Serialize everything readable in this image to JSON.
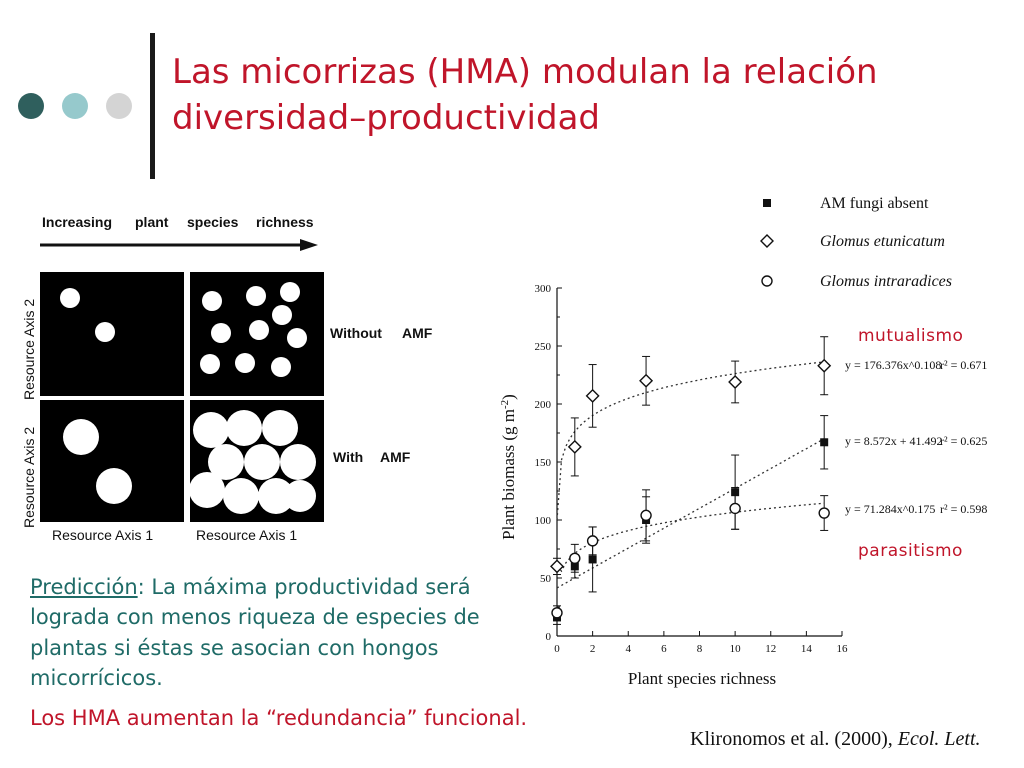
{
  "slide": {
    "title_line1": "Las micorrizas (HMA) modulan la relación",
    "title_line2": "diversidad–productividad",
    "prediction_label": "Predicción",
    "prediction_text": ": La máxima productividad será lograda con menos riqueza de especies de plantas si éstas se asocian con hongos micorrícicos.",
    "redundancy": "Los HMA aumentan la “redundancia” funcional.",
    "citation_authors": "Klironomos et al. (2000),",
    "citation_journal": "Ecol. Lett.",
    "tag_mutualism": "mutualismo",
    "tag_parasitism": "parasitismo",
    "colors": {
      "accent_red": "#c0152a",
      "teal_text": "#1f6b67",
      "dot1": "#2f5f5d",
      "dot2": "#96c9cc",
      "dot3": "#d4d4d4"
    }
  },
  "diagram": {
    "arrow_words": [
      "Increasing",
      "plant",
      "species",
      "richness"
    ],
    "row_label_without": [
      "Without",
      "AMF"
    ],
    "row_label_with": [
      "With",
      "AMF"
    ],
    "y_axis_label": "Resource  Axis  2",
    "x_axis_label": "Resource  Axis  1"
  },
  "chart_data": {
    "type": "scatter",
    "xlabel": "Plant species richness",
    "ylabel": "Plant biomass (g m-2)",
    "xlim": [
      0,
      16
    ],
    "ylim": [
      0,
      300
    ],
    "x_ticks": [
      0,
      2,
      4,
      6,
      8,
      10,
      12,
      14,
      16
    ],
    "y_ticks": [
      0,
      50,
      100,
      150,
      200,
      250,
      300
    ],
    "legend_position": "top-right",
    "series": [
      {
        "name": "AM fungi absent",
        "marker": "filled-square",
        "x": [
          0,
          1,
          2,
          5,
          10,
          15
        ],
        "y": [
          16,
          60,
          66,
          100,
          124,
          167
        ],
        "err": [
          6,
          10,
          28,
          20,
          32,
          23
        ],
        "fit": {
          "kind": "linear",
          "a": 8.572,
          "b": 41.492,
          "equation": "y = 8.572x + 41.492",
          "r2": "r² = 0.625"
        }
      },
      {
        "name": "Glomus etunicatum",
        "marker": "open-diamond",
        "x": [
          0,
          1,
          2,
          5,
          10,
          15
        ],
        "y": [
          60,
          163,
          207,
          220,
          219,
          233
        ],
        "err": [
          7,
          25,
          27,
          21,
          18,
          25
        ],
        "fit": {
          "kind": "power",
          "a": 176.376,
          "b": 0.108,
          "equation": "y = 176.376x^0.108",
          "r2": "r² = 0.671"
        }
      },
      {
        "name": "Glomus intraradices",
        "marker": "open-circle",
        "x": [
          0,
          1,
          2,
          5,
          10,
          15
        ],
        "y": [
          20,
          67,
          82,
          104,
          110,
          106
        ],
        "err": [
          6,
          12,
          12,
          22,
          18,
          15
        ],
        "fit": {
          "kind": "power",
          "a": 71.284,
          "b": 0.175,
          "equation": "y = 71.284x^0.175",
          "r2": "r² = 0.598"
        }
      }
    ]
  }
}
